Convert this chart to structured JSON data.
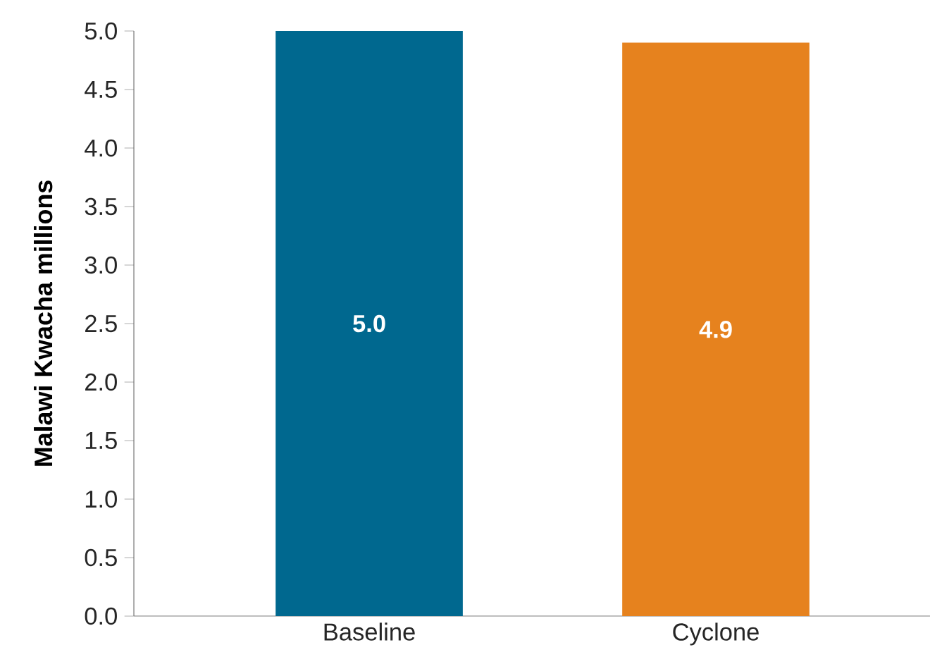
{
  "chart_data": {
    "type": "bar",
    "ylabel": "Malawi Kwacha millions",
    "categories": [
      "Baseline",
      "Cyclone"
    ],
    "values": [
      5.0,
      4.9
    ],
    "colors": [
      "#00688f",
      "#e6821e"
    ],
    "ylim": [
      0,
      5.0
    ],
    "yticks": [
      {
        "value": 0,
        "label": "0.0"
      },
      {
        "value": 0.5,
        "label": "0.5"
      },
      {
        "value": 1,
        "label": "1.0"
      },
      {
        "value": 1.5,
        "label": "1.5"
      },
      {
        "value": 2,
        "label": "2.0"
      },
      {
        "value": 2.5,
        "label": "2.5"
      },
      {
        "value": 3,
        "label": "3.0"
      },
      {
        "value": 3.5,
        "label": "3.5"
      },
      {
        "value": 4,
        "label": "4.0"
      },
      {
        "value": 4.5,
        "label": "4.5"
      },
      {
        "value": 5,
        "label": "5.0"
      }
    ],
    "value_labels": [
      "5.0",
      "4.9"
    ]
  }
}
